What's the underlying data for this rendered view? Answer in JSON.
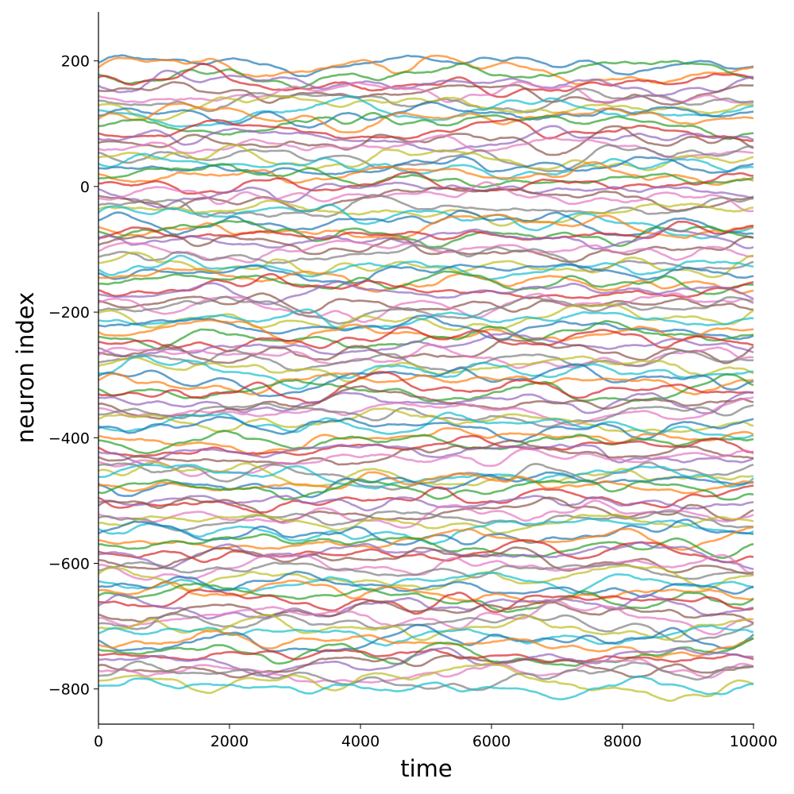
{
  "chart_data": {
    "type": "line",
    "title": "",
    "xlabel": "time",
    "ylabel": "neuron index",
    "xlim": [
      0,
      10000
    ],
    "ylim": [
      -856,
      278
    ],
    "xticks": [
      "0",
      "2000",
      "4000",
      "6000",
      "8000",
      "10000"
    ],
    "yticks": [
      "200",
      "0",
      "−200",
      "−400",
      "−600",
      "−800"
    ],
    "xtick_values": [
      0,
      2000,
      4000,
      6000,
      8000,
      10000
    ],
    "ytick_values": [
      200,
      0,
      -200,
      -400,
      -600,
      -800
    ],
    "grid": false,
    "legend": "none",
    "series_count": 120,
    "colors": [
      "#1f77b4",
      "#ff7f0e",
      "#2ca02c",
      "#d62728",
      "#9467bd",
      "#8c564b",
      "#e377c2",
      "#7f7f7f",
      "#bcbd22",
      "#17becf"
    ],
    "line_alpha": 0.7,
    "series_offsets": [
      195,
      187,
      178,
      170,
      162,
      153,
      145,
      137,
      128,
      120,
      112,
      104,
      95,
      87,
      78,
      70,
      62,
      53,
      45,
      37,
      29,
      20,
      12,
      4,
      -5,
      -13,
      -21,
      -30,
      -38,
      -46,
      -55,
      -63,
      -71,
      -80,
      -88,
      -96,
      -105,
      -113,
      -121,
      -130,
      -138,
      -146,
      -155,
      -163,
      -171,
      -180,
      -188,
      -196,
      -205,
      -213,
      -221,
      -229,
      -238,
      -246,
      -255,
      -263,
      -271,
      -280,
      -288,
      -296,
      -304,
      -312,
      -321,
      -329,
      -338,
      -346,
      -354,
      -363,
      -371,
      -379,
      -387,
      -396,
      -404,
      -412,
      -421,
      -429,
      -437,
      -446,
      -454,
      -462,
      -471,
      -479,
      -487,
      -495,
      -504,
      -512,
      -520,
      -529,
      -537,
      -545,
      -554,
      -562,
      -570,
      -579,
      -587,
      -595,
      -604,
      -612,
      -620,
      -628,
      -637,
      -645,
      -653,
      -662,
      -670,
      -678,
      -687,
      -695,
      -703,
      -712,
      -720,
      -728,
      -737,
      -745,
      -753,
      -762,
      -770,
      -778,
      -787,
      -795
    ]
  }
}
